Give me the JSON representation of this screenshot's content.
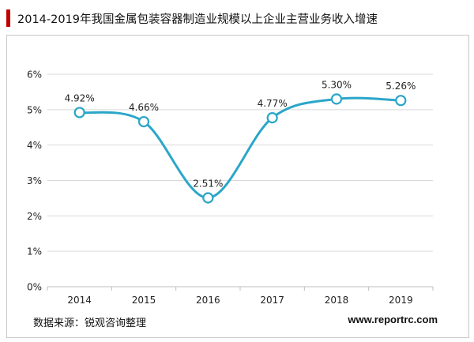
{
  "title": "2014-2019年我国金属包装容器制造业规模以上企业主营业务收入增速",
  "source": "数据来源：锐观咨询整理",
  "website": "www.reportrc.com",
  "colors": {
    "line": "#2aa6c9",
    "accent": "#c00000",
    "grid": "#d9d9d9",
    "axis": "#bfbfbf"
  },
  "chart_data": {
    "type": "line",
    "categories": [
      "2014",
      "2015",
      "2016",
      "2017",
      "2018",
      "2019"
    ],
    "values": [
      4.92,
      4.66,
      2.51,
      4.77,
      5.3,
      5.26
    ],
    "data_labels": [
      "4.92%",
      "4.66%",
      "2.51%",
      "4.77%",
      "5.30%",
      "5.26%"
    ],
    "y_ticks": [
      {
        "value": 0,
        "label": "0%"
      },
      {
        "value": 1,
        "label": "1%"
      },
      {
        "value": 2,
        "label": "2%"
      },
      {
        "value": 3,
        "label": "3%"
      },
      {
        "value": 4,
        "label": "4%"
      },
      {
        "value": 5,
        "label": "5%"
      },
      {
        "value": 6,
        "label": "6%"
      }
    ],
    "ylim": [
      0,
      6
    ],
    "smooth": true,
    "markers": "hollow-circle",
    "grid": true,
    "legend": "none"
  }
}
